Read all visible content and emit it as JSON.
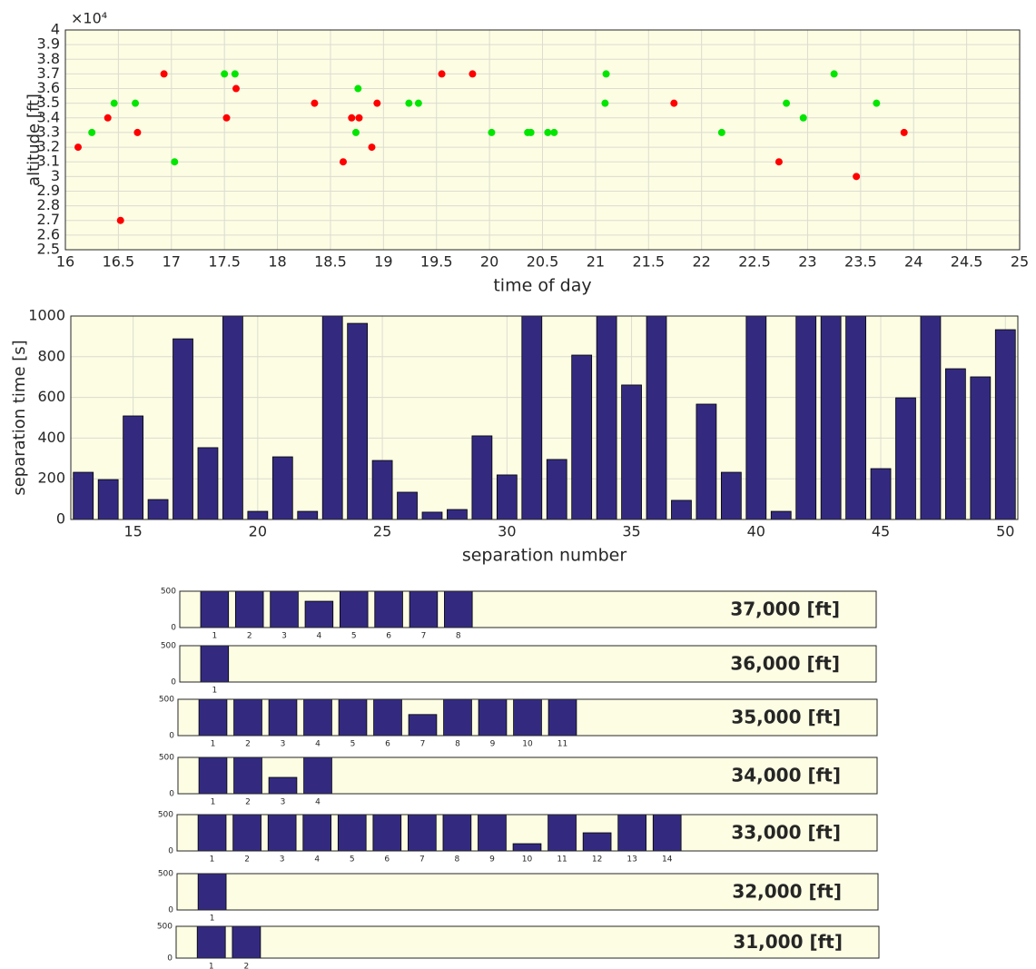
{
  "chart_data": [
    {
      "type": "scatter",
      "xlabel": "time of day",
      "ylabel": "altitude [ft]",
      "annotation": "×10⁴",
      "xlim": [
        16,
        25
      ],
      "xticks": [
        16,
        16.5,
        17,
        17.5,
        18,
        18.5,
        19,
        19.5,
        20,
        20.5,
        21,
        21.5,
        22,
        22.5,
        23,
        23.5,
        24,
        24.5,
        25
      ],
      "ylim": [
        25000,
        40000
      ],
      "yticks": [
        {
          "value": 25000,
          "label": "2.5"
        },
        {
          "value": 26000,
          "label": "2.6"
        },
        {
          "value": 27000,
          "label": "2.7"
        },
        {
          "value": 28000,
          "label": "2.8"
        },
        {
          "value": 29000,
          "label": "2.9"
        },
        {
          "value": 30000,
          "label": "3"
        },
        {
          "value": 31000,
          "label": "3.1"
        },
        {
          "value": 32000,
          "label": "3.2"
        },
        {
          "value": 33000,
          "label": "3.3"
        },
        {
          "value": 34000,
          "label": "3.4"
        },
        {
          "value": 35000,
          "label": "3.5"
        },
        {
          "value": 36000,
          "label": "3.6"
        },
        {
          "value": 37000,
          "label": "3.7"
        },
        {
          "value": 38000,
          "label": "3.8"
        },
        {
          "value": 39000,
          "label": "3.9"
        },
        {
          "value": 40000,
          "label": "4"
        }
      ],
      "grid": true,
      "series": [
        {
          "color": "#ff0000",
          "x": [
            16.12,
            16.4,
            16.52,
            16.68,
            16.93,
            17.52,
            17.61,
            18.35,
            18.62,
            18.7,
            18.77,
            18.89,
            18.94,
            19.55,
            19.84,
            21.74,
            22.73,
            23.46,
            23.91
          ],
          "values": [
            32000,
            34000,
            27000,
            33000,
            37000,
            34000,
            36000,
            35000,
            31000,
            34000,
            34000,
            32000,
            35000,
            37000,
            37000,
            35000,
            31000,
            30000,
            33000
          ]
        },
        {
          "color": "#00e600",
          "x": [
            16.25,
            16.46,
            16.66,
            17.03,
            17.5,
            17.6,
            18.74,
            18.76,
            19.24,
            19.33,
            20.02,
            20.36,
            20.39,
            20.55,
            20.61,
            21.1,
            21.09,
            22.19,
            22.8,
            22.96,
            23.25,
            23.65
          ],
          "values": [
            33000,
            35000,
            35000,
            31000,
            37000,
            37000,
            33000,
            36000,
            35000,
            35000,
            33000,
            33000,
            33000,
            33000,
            33000,
            37000,
            35000,
            33000,
            35000,
            34000,
            37000,
            35000
          ]
        }
      ]
    },
    {
      "type": "bar",
      "xlabel": "separation number",
      "ylabel": "separation time [s]",
      "color": "#332a80",
      "categories": [
        13,
        14,
        15,
        16,
        17,
        18,
        19,
        20,
        21,
        22,
        23,
        24,
        25,
        26,
        27,
        28,
        29,
        30,
        31,
        32,
        33,
        34,
        35,
        36,
        37,
        38,
        39,
        40,
        41,
        42,
        43,
        44,
        45,
        46,
        47,
        48,
        49,
        50
      ],
      "values": [
        232,
        196,
        509,
        98,
        888,
        353,
        1000,
        40,
        308,
        40,
        1000,
        964,
        290,
        134,
        36,
        49,
        411,
        219,
        1000,
        295,
        808,
        1000,
        661,
        1000,
        94,
        567,
        232,
        1000,
        40,
        1000,
        1000,
        1000,
        250,
        598,
        1000,
        741,
        701,
        933
      ],
      "xlim": [
        12.5,
        50.5
      ],
      "xticks": [
        15,
        20,
        25,
        30,
        35,
        40,
        45,
        50
      ],
      "ylim": [
        0,
        1000
      ],
      "yticks": [
        0,
        200,
        400,
        600,
        800,
        1000
      ],
      "grid": true
    },
    {
      "type": "bar",
      "annotation": "37,000 [ft]",
      "color": "#332a80",
      "categories": [
        1,
        2,
        3,
        4,
        5,
        6,
        7,
        8
      ],
      "values": [
        500,
        500,
        500,
        362,
        500,
        500,
        500,
        500
      ],
      "xlim": [
        0,
        20
      ],
      "ylim": [
        0,
        500
      ],
      "yticks": [
        0,
        500
      ]
    },
    {
      "type": "bar",
      "annotation": "36,000 [ft]",
      "color": "#332a80",
      "categories": [
        1
      ],
      "values": [
        500
      ],
      "xlim": [
        0,
        20
      ],
      "ylim": [
        0,
        500
      ],
      "yticks": [
        0,
        500
      ]
    },
    {
      "type": "bar",
      "annotation": "35,000 [ft]",
      "color": "#332a80",
      "categories": [
        1,
        2,
        3,
        4,
        5,
        6,
        7,
        8,
        9,
        10,
        11
      ],
      "values": [
        500,
        500,
        500,
        500,
        500,
        500,
        290,
        500,
        500,
        500,
        500
      ],
      "xlim": [
        0,
        20
      ],
      "ylim": [
        0,
        500
      ],
      "yticks": [
        0,
        500
      ]
    },
    {
      "type": "bar",
      "annotation": "34,000 [ft]",
      "color": "#332a80",
      "categories": [
        1,
        2,
        3,
        4
      ],
      "values": [
        500,
        500,
        225,
        500
      ],
      "xlim": [
        0,
        20
      ],
      "ylim": [
        0,
        500
      ],
      "yticks": [
        0,
        500
      ]
    },
    {
      "type": "bar",
      "annotation": "33,000 [ft]",
      "color": "#332a80",
      "categories": [
        1,
        2,
        3,
        4,
        5,
        6,
        7,
        8,
        9,
        10,
        11,
        12,
        13,
        14
      ],
      "values": [
        500,
        500,
        500,
        500,
        500,
        500,
        500,
        500,
        500,
        100,
        500,
        250,
        500,
        500
      ],
      "xlim": [
        0,
        20
      ],
      "ylim": [
        0,
        500
      ],
      "yticks": [
        0,
        500
      ]
    },
    {
      "type": "bar",
      "annotation": "32,000 [ft]",
      "color": "#332a80",
      "categories": [
        1
      ],
      "values": [
        500
      ],
      "xlim": [
        0,
        20
      ],
      "ylim": [
        0,
        500
      ],
      "yticks": [
        0,
        500
      ]
    },
    {
      "type": "bar",
      "annotation": "31,000 [ft]",
      "color": "#332a80",
      "categories": [
        1,
        2
      ],
      "values": [
        500,
        500
      ],
      "xlim": [
        0,
        20
      ],
      "ylim": [
        0,
        500
      ],
      "yticks": [
        0,
        500
      ]
    }
  ]
}
